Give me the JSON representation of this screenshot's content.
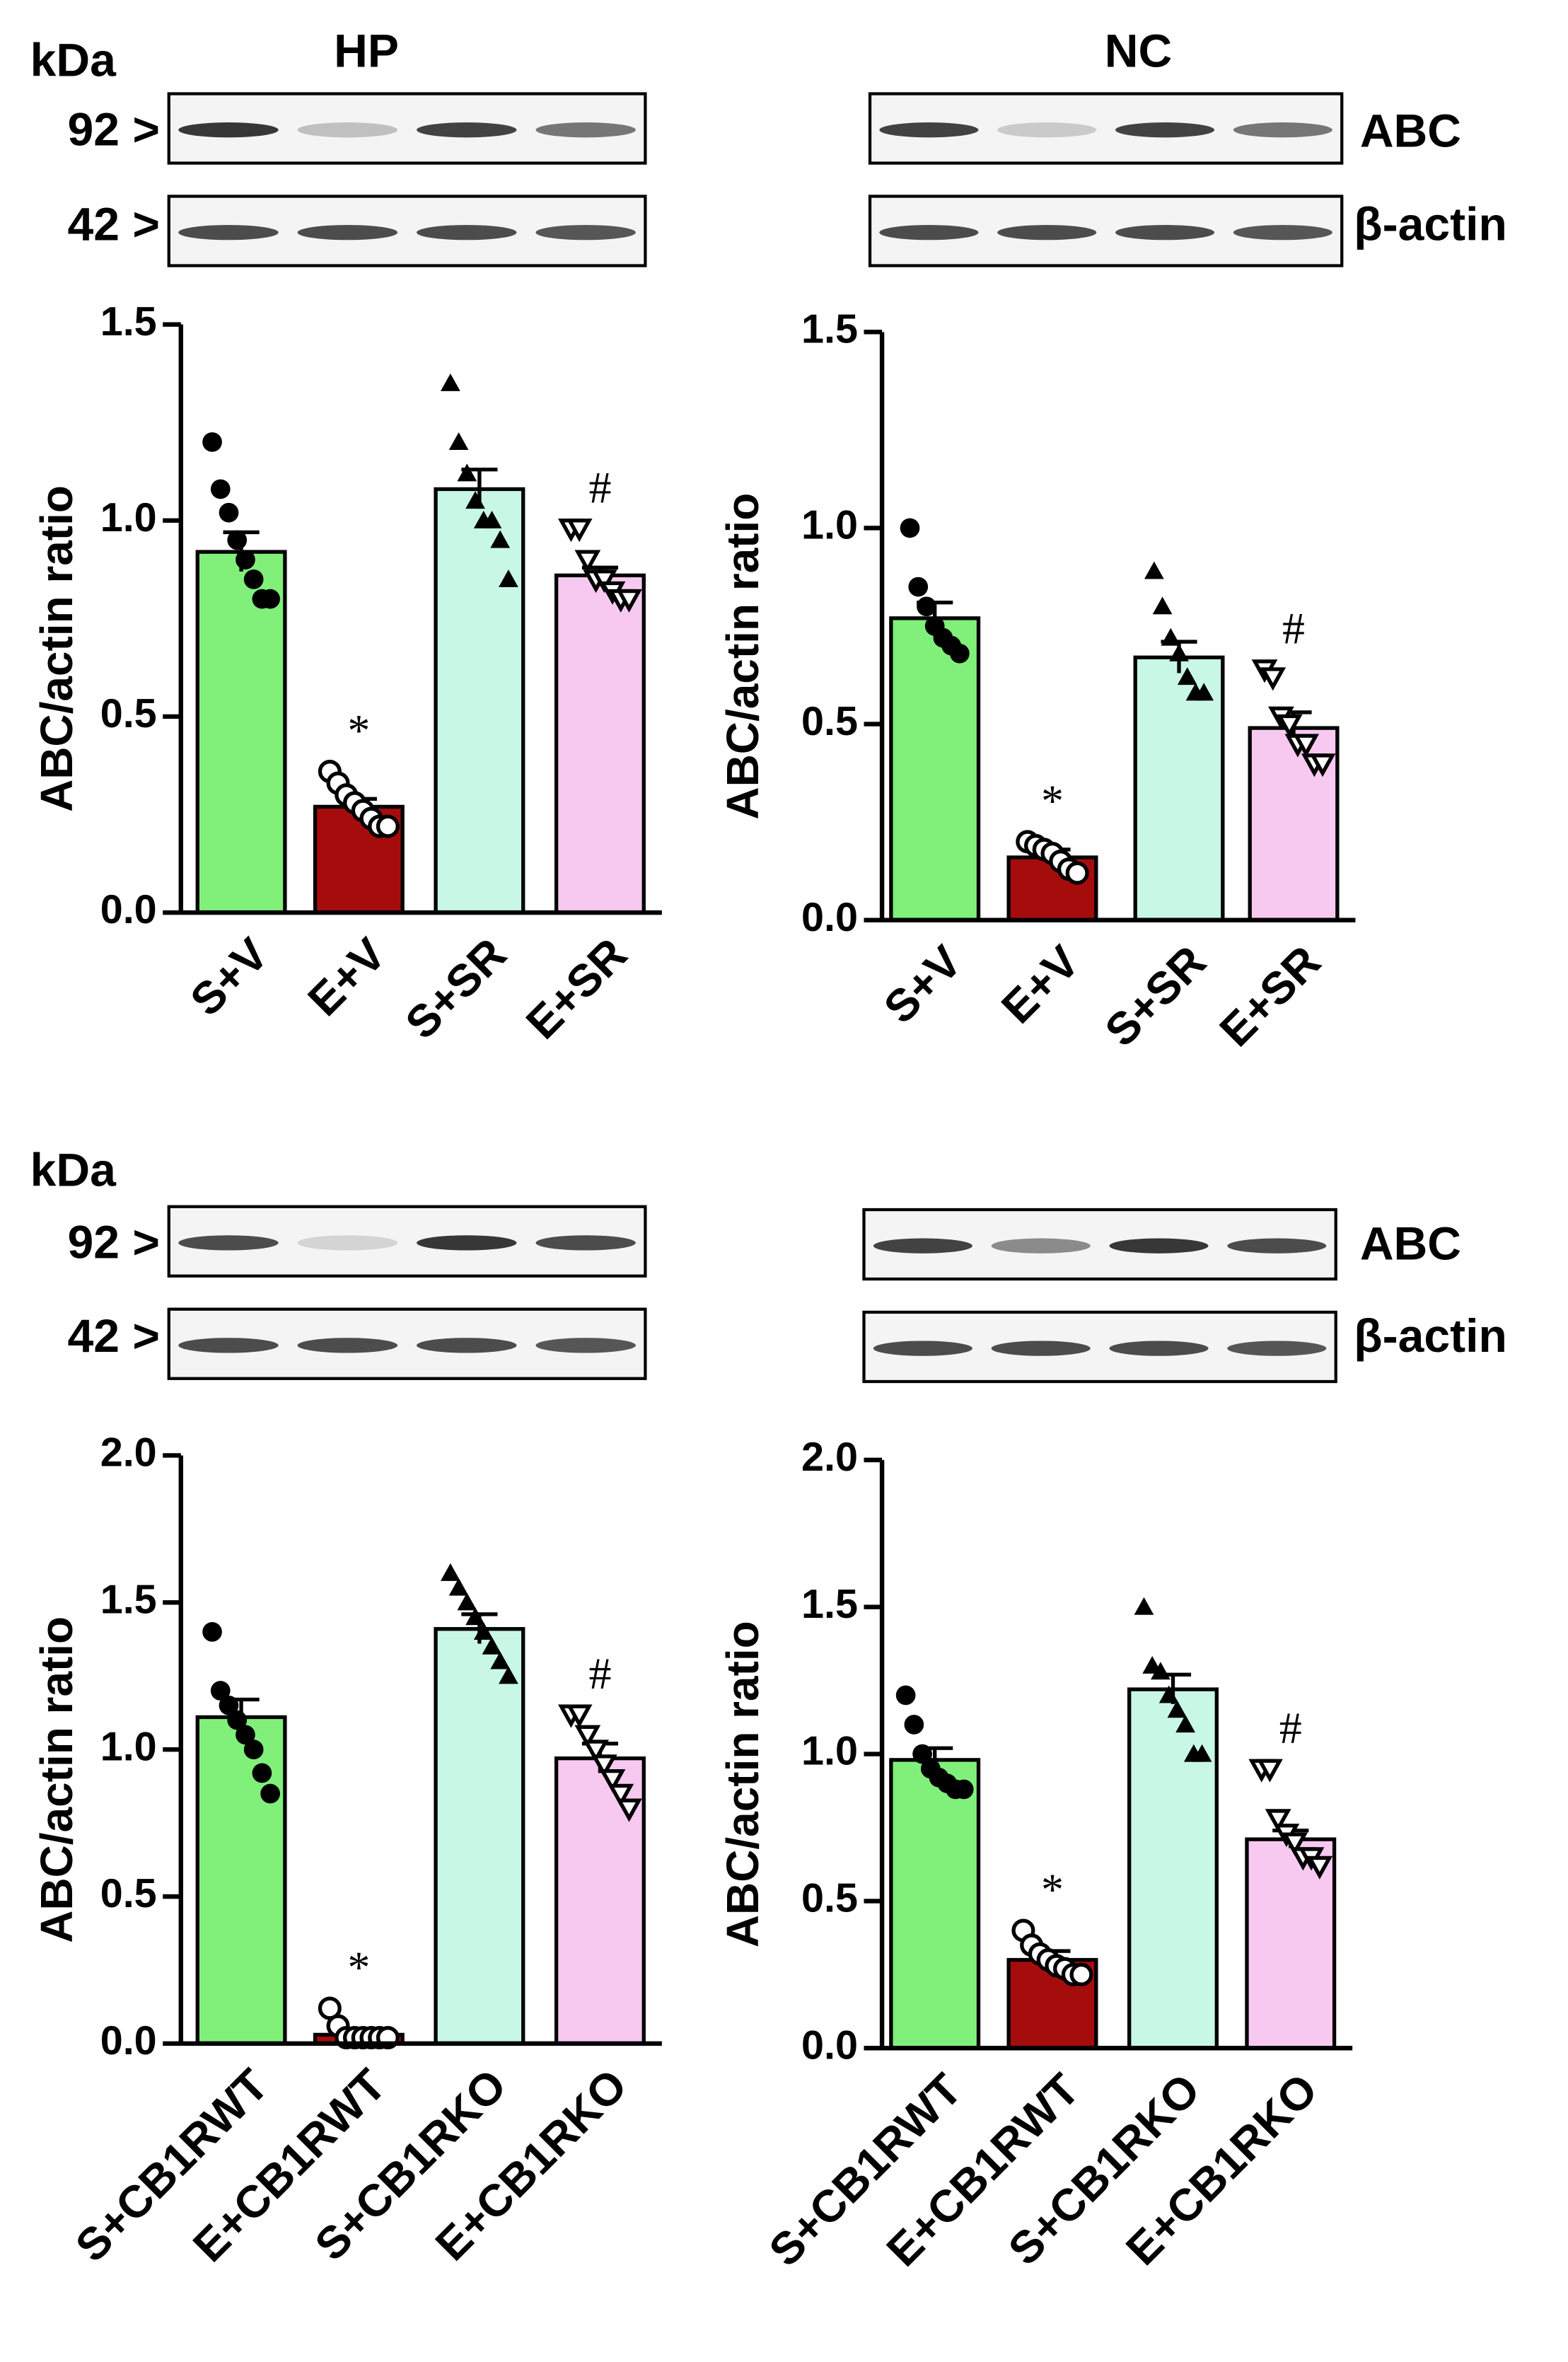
{
  "blot_labels": {
    "kda": "kDa",
    "marker_high": "92 >",
    "marker_low": "42 >",
    "protein": "ABC",
    "loading": "β-actin",
    "region_left": "HP",
    "region_right": "NC"
  },
  "chart_data": [
    {
      "type": "bar",
      "ylabel": "ABC/actin ratio",
      "categories": [
        "S+V",
        "E+V",
        "S+SR",
        "E+SR"
      ],
      "values": [
        0.92,
        0.27,
        1.08,
        0.86
      ],
      "errors": [
        0.05,
        0.02,
        0.05,
        0.02
      ],
      "points": [
        [
          1.2,
          1.08,
          1.02,
          0.95,
          0.9,
          0.85,
          0.8,
          0.8
        ],
        [
          0.36,
          0.33,
          0.3,
          0.28,
          0.26,
          0.24,
          0.22,
          0.22
        ],
        [
          1.35,
          1.2,
          1.12,
          1.05,
          1.0,
          1.0,
          0.95,
          0.85
        ],
        [
          0.98,
          0.98,
          0.9,
          0.85,
          0.85,
          0.82,
          0.8,
          0.8
        ]
      ],
      "colors": [
        "#80f07a",
        "#a50d0d",
        "#c8f7e6",
        "#f8c9f0"
      ],
      "markers": [
        "circle-filled",
        "circle-open",
        "triangle-up-filled",
        "triangle-down-open"
      ],
      "annotations": [
        {
          "category": "E+V",
          "text": "*"
        },
        {
          "category": "E+SR",
          "text": "#"
        }
      ],
      "ylim": [
        0,
        1.5
      ],
      "yticks": [
        {
          "value": 0,
          "label": "0.0"
        },
        0.5,
        {
          "value": 1,
          "label": "1.0"
        },
        1.5
      ]
    },
    {
      "type": "bar",
      "ylabel": "ABC/actin ratio",
      "categories": [
        "S+V",
        "E+V",
        "S+SR",
        "E+SR"
      ],
      "values": [
        0.77,
        0.16,
        0.67,
        0.49
      ],
      "errors": [
        0.04,
        0.02,
        0.04,
        0.04
      ],
      "points": [
        [
          1.0,
          0.85,
          0.8,
          0.75,
          0.72,
          0.7,
          0.68
        ],
        [
          0.2,
          0.19,
          0.18,
          0.17,
          0.15,
          0.13,
          0.12
        ],
        [
          0.89,
          0.8,
          0.72,
          0.68,
          0.62,
          0.58,
          0.58
        ],
        [
          0.64,
          0.62,
          0.52,
          0.5,
          0.45,
          0.45,
          0.4,
          0.4
        ]
      ],
      "colors": [
        "#80f07a",
        "#a50d0d",
        "#c8f7e6",
        "#f8c9f0"
      ],
      "markers": [
        "circle-filled",
        "circle-open",
        "triangle-up-filled",
        "triangle-down-open"
      ],
      "annotations": [
        {
          "category": "E+V",
          "text": "*"
        },
        {
          "category": "E+SR",
          "text": "#"
        }
      ],
      "ylim": [
        0,
        1.5
      ],
      "yticks": [
        {
          "value": 0,
          "label": "0.0"
        },
        0.5,
        {
          "value": 1,
          "label": "1.0"
        },
        1.5
      ]
    },
    {
      "type": "bar",
      "ylabel": "ABC/actin ratio",
      "categories": [
        "S+CB1RWT",
        "E+CB1RWT",
        "S+CB1RKO",
        "E+CB1RKO"
      ],
      "values": [
        1.11,
        0.03,
        1.41,
        0.97
      ],
      "errors": [
        0.06,
        0.02,
        0.05,
        0.05
      ],
      "points": [
        [
          1.4,
          1.2,
          1.15,
          1.1,
          1.05,
          1.0,
          0.92,
          0.85
        ],
        [
          0.12,
          0.06,
          0.02,
          0.02,
          0.02,
          0.02,
          0.02,
          0.02
        ],
        [
          1.6,
          1.55,
          1.5,
          1.45,
          1.4,
          1.35,
          1.3,
          1.25
        ],
        [
          1.12,
          1.12,
          1.05,
          1.0,
          0.95,
          0.9,
          0.85,
          0.8
        ]
      ],
      "colors": [
        "#80f07a",
        "#a50d0d",
        "#c8f7e6",
        "#f8c9f0"
      ],
      "markers": [
        "circle-filled",
        "circle-open",
        "triangle-up-filled",
        "triangle-down-open"
      ],
      "annotations": [
        {
          "category": "E+CB1RWT",
          "text": "*"
        },
        {
          "category": "E+CB1RKO",
          "text": "#"
        }
      ],
      "ylim": [
        0,
        2
      ],
      "yticks": [
        {
          "value": 0,
          "label": "0.0"
        },
        0.5,
        {
          "value": 1,
          "label": "1.0"
        },
        1.5,
        {
          "value": 2,
          "label": "2.0"
        }
      ]
    },
    {
      "type": "bar",
      "ylabel": "ABC/actin ratio",
      "categories": [
        "S+CB1RWT",
        "E+CB1RWT",
        "S+CB1RKO",
        "E+CB1RKO"
      ],
      "values": [
        0.98,
        0.3,
        1.22,
        0.71
      ],
      "errors": [
        0.04,
        0.03,
        0.05,
        0.03
      ],
      "points": [
        [
          1.2,
          1.1,
          1.0,
          0.95,
          0.92,
          0.9,
          0.88,
          0.88
        ],
        [
          0.4,
          0.35,
          0.32,
          0.3,
          0.28,
          0.27,
          0.25,
          0.25
        ],
        [
          1.5,
          1.3,
          1.28,
          1.2,
          1.15,
          1.1,
          1.0,
          1.0
        ],
        [
          0.95,
          0.95,
          0.78,
          0.73,
          0.7,
          0.65,
          0.65,
          0.62
        ]
      ],
      "colors": [
        "#80f07a",
        "#a50d0d",
        "#c8f7e6",
        "#f8c9f0"
      ],
      "markers": [
        "circle-filled",
        "circle-open",
        "triangle-up-filled",
        "triangle-down-open"
      ],
      "annotations": [
        {
          "category": "E+CB1RWT",
          "text": "*"
        },
        {
          "category": "E+CB1RKO",
          "text": "#"
        }
      ],
      "ylim": [
        0,
        2
      ],
      "yticks": [
        {
          "value": 0,
          "label": "0.0"
        },
        0.5,
        {
          "value": 1,
          "label": "1.0"
        },
        1.5,
        {
          "value": 2,
          "label": "2.0"
        }
      ]
    }
  ]
}
